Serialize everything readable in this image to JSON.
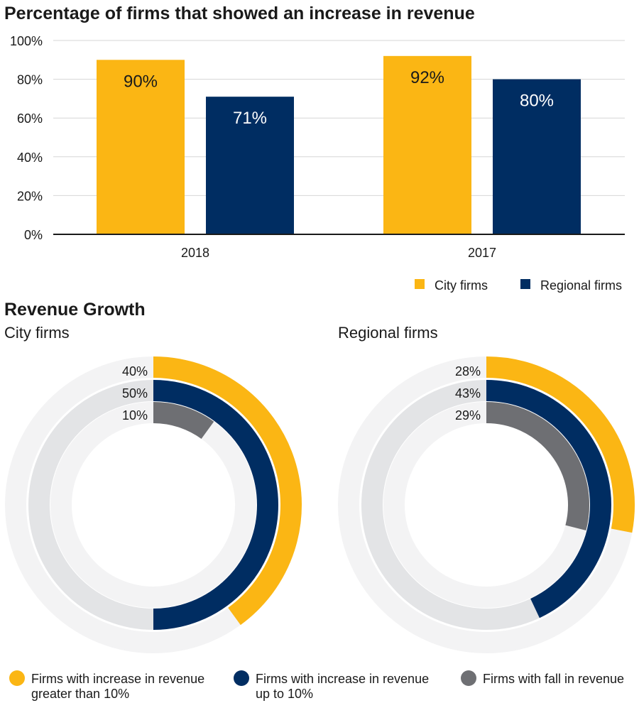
{
  "chart_data": [
    {
      "type": "bar",
      "title": "Percentage of firms that showed an increase in revenue",
      "categories": [
        "2018",
        "2017"
      ],
      "series": [
        {
          "name": "City firms",
          "values": [
            90,
            92
          ],
          "color": "#FBB614"
        },
        {
          "name": "Regional firms",
          "values": [
            71,
            80
          ],
          "color": "#002D62"
        }
      ],
      "data_labels": [
        [
          "90%",
          "92%"
        ],
        [
          "71%",
          "80%"
        ]
      ],
      "ylim": [
        0,
        100
      ],
      "yticks": [
        0,
        20,
        40,
        60,
        80,
        100
      ],
      "ytick_labels": [
        "0%",
        "20%",
        "40%",
        "60%",
        "80%",
        "100%"
      ],
      "grid": true,
      "legend_position": "bottom-right"
    },
    {
      "type": "pie",
      "subtype": "concentric-rings",
      "title": "Revenue Growth",
      "subtitle": "City firms",
      "labels": [
        "Firms with increase in revenue greater than 10%",
        "Firms with increase in revenue up to 10%",
        "Firms with fall in revenue"
      ],
      "values": [
        40,
        50,
        10
      ],
      "value_labels": [
        "40%",
        "50%",
        "10%"
      ],
      "colors": [
        "#FBB614",
        "#002D62",
        "#6E6F73"
      ]
    },
    {
      "type": "pie",
      "subtype": "concentric-rings",
      "subtitle": "Regional firms",
      "labels": [
        "Firms with increase in revenue greater than 10%",
        "Firms with increase in revenue up to 10%",
        "Firms with fall in revenue"
      ],
      "values": [
        28,
        43,
        29
      ],
      "value_labels": [
        "28%",
        "43%",
        "29%"
      ],
      "colors": [
        "#FBB614",
        "#002D62",
        "#6E6F73"
      ]
    }
  ],
  "legend_bottom": [
    {
      "lines": [
        "Firms with increase in revenue",
        "greater than 10%"
      ],
      "color": "#FBB614"
    },
    {
      "lines": [
        "Firms with increase in revenue",
        "up to 10%"
      ],
      "color": "#002D62"
    },
    {
      "lines": [
        "Firms with fall in revenue"
      ],
      "color": "#6E6F73"
    }
  ],
  "track_colors": [
    "#F3F3F4",
    "#E3E4E6",
    "#F3F3F4"
  ]
}
